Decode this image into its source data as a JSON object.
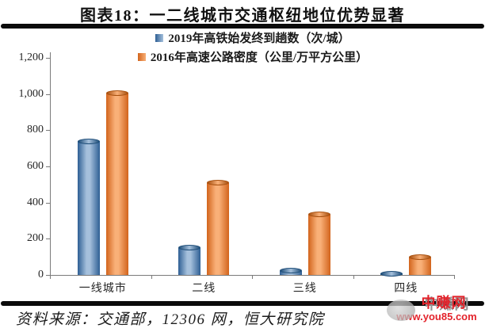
{
  "title": "图表18：一二线城市交通枢纽地位优势显著",
  "source_note": "资料来源：交通部，12306 网，恒大研究院",
  "watermark": {
    "name": "中赚网",
    "url": "www.you85.com",
    "color": "#e3232b"
  },
  "chart_data": {
    "type": "bar",
    "title": "图表18：一二线城市交通枢纽地位优势显著",
    "categories": [
      "一线城市",
      "二线",
      "三线",
      "四线"
    ],
    "series": [
      {
        "name": "2019年高铁始发终到趟数（次/城）",
        "values": [
          740,
          150,
          22,
          8
        ],
        "colors": {
          "dark": "#2e5f94",
          "light": "#a5c0dc",
          "edge": "#1f4e79"
        }
      },
      {
        "name": "2016年高速公路密度（公里/万平方公里）",
        "values": [
          1005,
          510,
          335,
          98
        ],
        "colors": {
          "dark": "#d2641c",
          "light": "#f9b078",
          "edge": "#a8500f"
        }
      }
    ],
    "xlabel": "",
    "ylabel": "",
    "ylim": [
      0,
      1200
    ],
    "ytick_interval": 200,
    "ytick_labels": [
      "0",
      "200",
      "400",
      "600",
      "800",
      "1,000",
      "1,200"
    ],
    "grid": false,
    "legend_position": "top-center"
  }
}
